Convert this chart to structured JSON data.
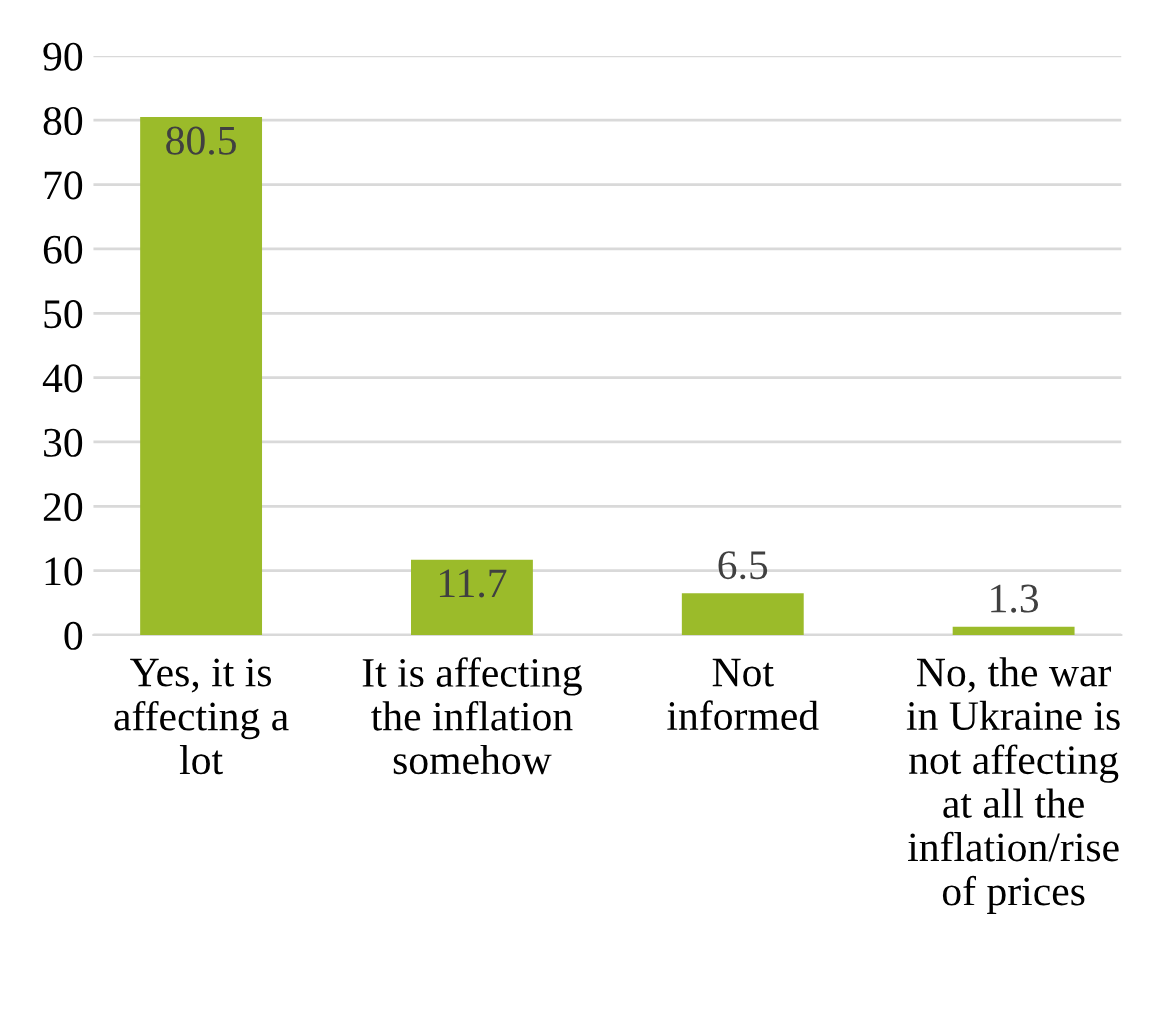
{
  "chart_data": {
    "type": "bar",
    "categories": [
      "Yes, it is\naffecting a\nlot",
      "It is affecting\nthe inflation\nsomehow",
      "Not\ninformed",
      "No, the war\nin Ukraine is\nnot affecting\nat all the\ninflation/rise\nof prices"
    ],
    "values": [
      80.5,
      11.7,
      6.5,
      1.3
    ],
    "color": "#9bbb2a",
    "ylim": [
      0,
      90
    ],
    "yticks": [
      0,
      10,
      20,
      30,
      40,
      50,
      60,
      70,
      80,
      90
    ],
    "grid": "y",
    "data_labels": true
  }
}
